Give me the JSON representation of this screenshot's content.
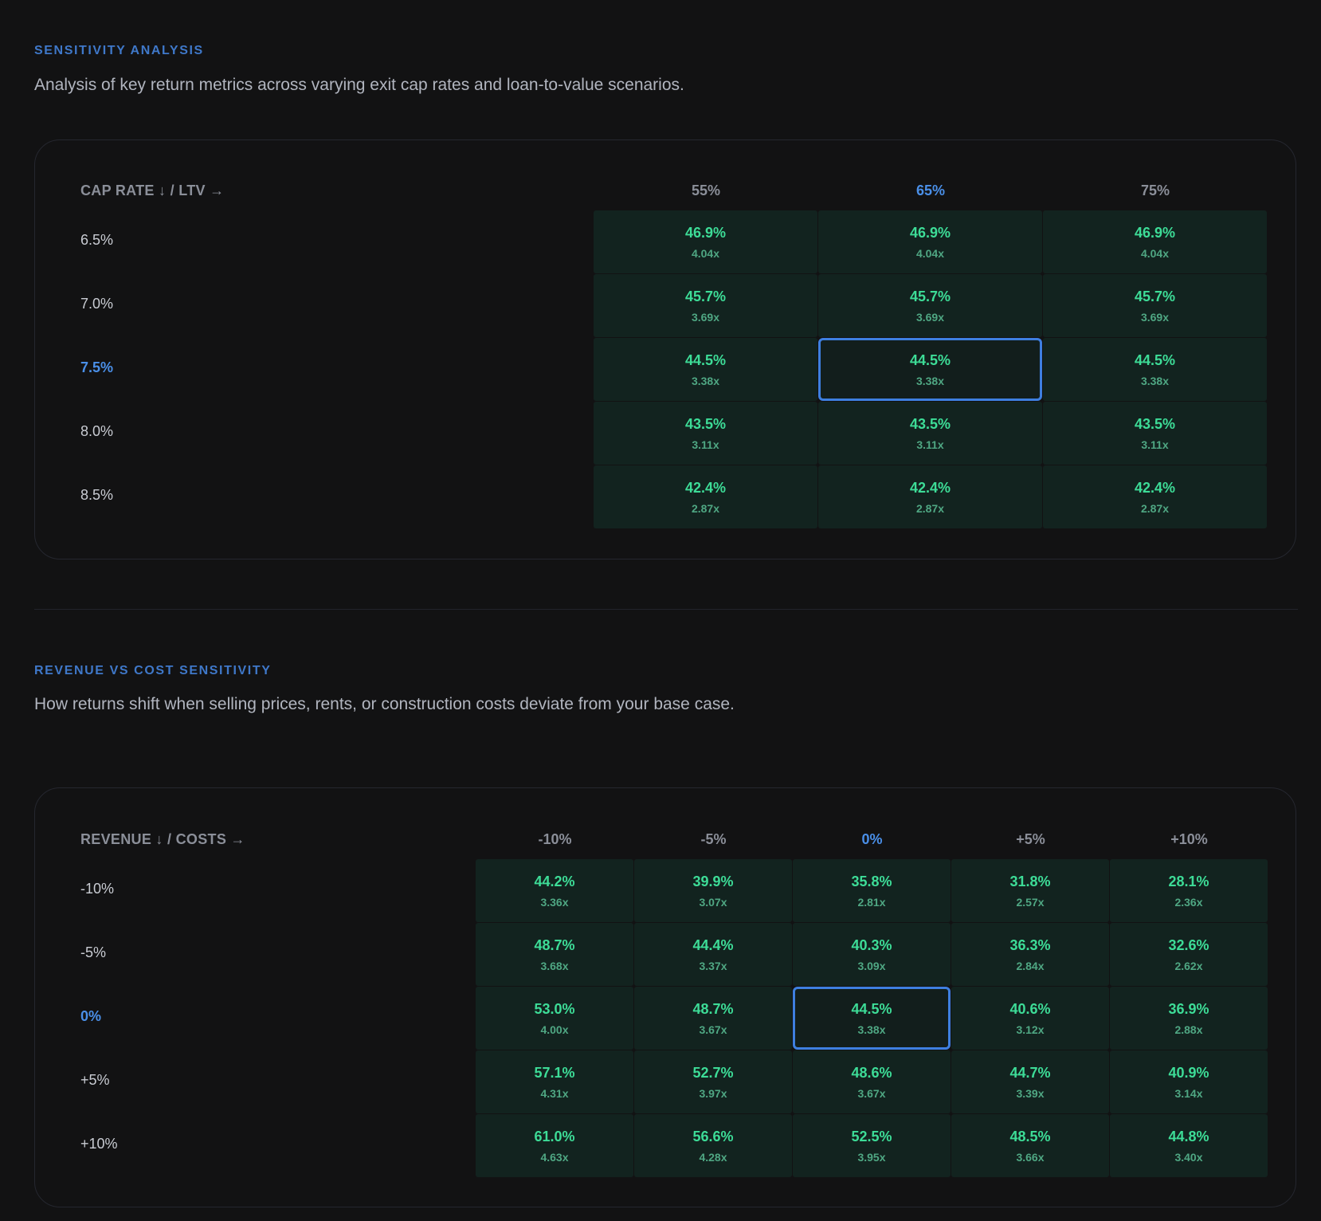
{
  "section1": {
    "eyebrow": "SENSITIVITY ANALYSIS",
    "description": "Analysis of key return metrics across varying exit cap rates and loan-to-value scenarios.",
    "corner_label": "CAP RATE ↓ / LTV →",
    "columns": [
      "55%",
      "65%",
      "75%"
    ],
    "rows": [
      "6.5%",
      "7.0%",
      "7.5%",
      "8.0%",
      "8.5%"
    ],
    "active_col": 1,
    "active_row": 2,
    "cells": [
      [
        {
          "irr": "46.9%",
          "multiple": "4.04x"
        },
        {
          "irr": "46.9%",
          "multiple": "4.04x"
        },
        {
          "irr": "46.9%",
          "multiple": "4.04x"
        }
      ],
      [
        {
          "irr": "45.7%",
          "multiple": "3.69x"
        },
        {
          "irr": "45.7%",
          "multiple": "3.69x"
        },
        {
          "irr": "45.7%",
          "multiple": "3.69x"
        }
      ],
      [
        {
          "irr": "44.5%",
          "multiple": "3.38x"
        },
        {
          "irr": "44.5%",
          "multiple": "3.38x"
        },
        {
          "irr": "44.5%",
          "multiple": "3.38x"
        }
      ],
      [
        {
          "irr": "43.5%",
          "multiple": "3.11x"
        },
        {
          "irr": "43.5%",
          "multiple": "3.11x"
        },
        {
          "irr": "43.5%",
          "multiple": "3.11x"
        }
      ],
      [
        {
          "irr": "42.4%",
          "multiple": "2.87x"
        },
        {
          "irr": "42.4%",
          "multiple": "2.87x"
        },
        {
          "irr": "42.4%",
          "multiple": "2.87x"
        }
      ]
    ]
  },
  "section2": {
    "eyebrow": "REVENUE VS COST SENSITIVITY",
    "description": "How returns shift when selling prices, rents, or construction costs deviate from your base case.",
    "corner_label": "REVENUE ↓ / COSTS →",
    "columns": [
      "-10%",
      "-5%",
      "0%",
      "+5%",
      "+10%"
    ],
    "rows": [
      "-10%",
      "-5%",
      "0%",
      "+5%",
      "+10%"
    ],
    "active_col": 2,
    "active_row": 2,
    "cells": [
      [
        {
          "irr": "44.2%",
          "multiple": "3.36x"
        },
        {
          "irr": "39.9%",
          "multiple": "3.07x"
        },
        {
          "irr": "35.8%",
          "multiple": "2.81x"
        },
        {
          "irr": "31.8%",
          "multiple": "2.57x"
        },
        {
          "irr": "28.1%",
          "multiple": "2.36x"
        }
      ],
      [
        {
          "irr": "48.7%",
          "multiple": "3.68x"
        },
        {
          "irr": "44.4%",
          "multiple": "3.37x"
        },
        {
          "irr": "40.3%",
          "multiple": "3.09x"
        },
        {
          "irr": "36.3%",
          "multiple": "2.84x"
        },
        {
          "irr": "32.6%",
          "multiple": "2.62x"
        }
      ],
      [
        {
          "irr": "53.0%",
          "multiple": "4.00x"
        },
        {
          "irr": "48.7%",
          "multiple": "3.67x"
        },
        {
          "irr": "44.5%",
          "multiple": "3.38x"
        },
        {
          "irr": "40.6%",
          "multiple": "3.12x"
        },
        {
          "irr": "36.9%",
          "multiple": "2.88x"
        }
      ],
      [
        {
          "irr": "57.1%",
          "multiple": "4.31x"
        },
        {
          "irr": "52.7%",
          "multiple": "3.97x"
        },
        {
          "irr": "48.6%",
          "multiple": "3.67x"
        },
        {
          "irr": "44.7%",
          "multiple": "3.39x"
        },
        {
          "irr": "40.9%",
          "multiple": "3.14x"
        }
      ],
      [
        {
          "irr": "61.0%",
          "multiple": "4.63x"
        },
        {
          "irr": "56.6%",
          "multiple": "4.28x"
        },
        {
          "irr": "52.5%",
          "multiple": "3.95x"
        },
        {
          "irr": "48.5%",
          "multiple": "3.66x"
        },
        {
          "irr": "44.8%",
          "multiple": "3.40x"
        }
      ]
    ]
  },
  "colors": {
    "accent": "#4a8fe8",
    "value_green": "#3ddc97",
    "cell_bg": "#12231f",
    "background": "#121213"
  }
}
